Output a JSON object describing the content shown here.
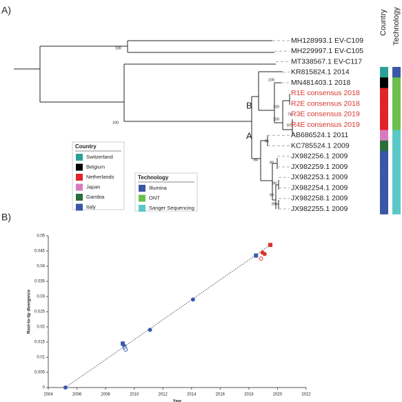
{
  "panel_labels": [
    "A)",
    "B)"
  ],
  "tree": {
    "column_headers": [
      "Country",
      "Technology"
    ],
    "tips": [
      {
        "label": "MH128993.1 EV-C109",
        "color": "#222222",
        "country": null,
        "technology": null
      },
      {
        "label": "MH229997.1 EV-C105",
        "color": "#222222",
        "country": null,
        "technology": null
      },
      {
        "label": "MT338567.1 EV-C117",
        "color": "#222222",
        "country": null,
        "technology": null
      },
      {
        "label": "KR815824.1 2014",
        "color": "#222222",
        "country": 0,
        "technology": 0
      },
      {
        "label": "MN481403.1 2018",
        "color": "#222222",
        "country": 1,
        "technology": 1
      },
      {
        "label": "R1E consensus 2018",
        "color": "#d9342b",
        "country": 2,
        "technology": 1
      },
      {
        "label": "R2E consensus 2018",
        "color": "#d9342b",
        "country": 2,
        "technology": 1
      },
      {
        "label": "R3E consensus 2019",
        "color": "#d9342b",
        "country": 2,
        "technology": 1
      },
      {
        "label": "R4E consensus 2019",
        "color": "#d9342b",
        "country": 2,
        "technology": 1
      },
      {
        "label": "AB686524.1 2011",
        "color": "#222222",
        "country": 3,
        "technology": 2
      },
      {
        "label": "KC785524.1 2009",
        "color": "#222222",
        "country": 4,
        "technology": 2
      },
      {
        "label": "JX982256.1 2009",
        "color": "#222222",
        "country": 5,
        "technology": 2
      },
      {
        "label": "JX982259.1 2009",
        "color": "#222222",
        "country": 5,
        "technology": 2
      },
      {
        "label": "JX982253.1 2009",
        "color": "#222222",
        "country": 5,
        "technology": 2
      },
      {
        "label": "JX982254.1 2009",
        "color": "#222222",
        "country": 5,
        "technology": 2
      },
      {
        "label": "JX982258.1 2009",
        "color": "#222222",
        "country": 5,
        "technology": 2
      },
      {
        "label": "JX982255.1 2009",
        "color": "#222222",
        "country": 5,
        "technology": 2
      }
    ],
    "bootstrap": [
      "100",
      "100",
      "100",
      "100",
      "100",
      "71",
      "97",
      "95",
      "84",
      "99",
      "99",
      "99",
      "99"
    ],
    "clades": [
      "A",
      "B"
    ],
    "legends": [
      {
        "title": "Country",
        "items": [
          {
            "name": "Switzerland",
            "color": "#2aa198"
          },
          {
            "name": "Belgium",
            "color": "#000000"
          },
          {
            "name": "Netherlands",
            "color": "#e0242a"
          },
          {
            "name": "Japan",
            "color": "#d77bc0"
          },
          {
            "name": "Gambia",
            "color": "#2c6e3a"
          },
          {
            "name": "Italy",
            "color": "#3a56a8"
          }
        ]
      },
      {
        "title": "Technology",
        "items": [
          {
            "name": "Illumina",
            "color": "#3a56a8"
          },
          {
            "name": "ONT",
            "color": "#6cbf4a"
          },
          {
            "name": "Sanger Sequencing",
            "color": "#5bc8c8"
          }
        ]
      }
    ]
  },
  "chart_data": {
    "type": "scatter",
    "xlabel": "Year",
    "ylabel": "Root-to-tip divergence",
    "xlim": [
      2004,
      2022
    ],
    "ylim": [
      0,
      0.05
    ],
    "xticks": [
      2004,
      2006,
      2008,
      2010,
      2012,
      2014,
      2016,
      2018,
      2020,
      2022
    ],
    "yticks": [
      0,
      0.005,
      0.01,
      0.015,
      0.02,
      0.025,
      0.03,
      0.035,
      0.04,
      0.045,
      0.05
    ],
    "trendline": {
      "color": "#333333",
      "x": [
        2005.2,
        2019.5
      ],
      "values": [
        0,
        0.047
      ]
    },
    "series": [
      {
        "color": "#3a5bab",
        "x": [
          2005.2,
          2009.2,
          2009.3,
          2009.35,
          2009.4,
          2011.1,
          2014.1,
          2018.5
        ],
        "values": [
          0,
          0.0145,
          0.0137,
          0.013,
          0.0125,
          0.019,
          0.029,
          0.0435
        ],
        "markers": [
          "circle",
          "square",
          "circle",
          "circle",
          "circle",
          "circle",
          "circle",
          "square"
        ],
        "filled": [
          true,
          true,
          true,
          false,
          false,
          true,
          true,
          true
        ]
      },
      {
        "color": "#d9342b",
        "x": [
          2019.5,
          2018.95,
          2019.1,
          2018.85
        ],
        "values": [
          0.047,
          0.0445,
          0.044,
          0.0425
        ],
        "markers": [
          "square",
          "circle",
          "circle",
          "circle"
        ],
        "filled": [
          true,
          true,
          true,
          false
        ]
      }
    ]
  }
}
